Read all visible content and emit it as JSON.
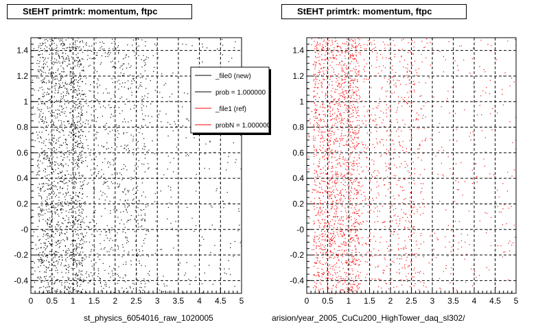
{
  "charts_window": {
    "background": "#ffffff"
  },
  "chart_data": [
    {
      "type": "scatter",
      "title": "StEHT primtrk: momentum, ftpc",
      "caption": "st_physics_6054016_raw_1020005",
      "xlim": [
        0,
        5
      ],
      "ylim": [
        -0.5,
        1.5
      ],
      "x_ticks": [
        "0",
        "0.5",
        "1",
        "1.5",
        "2",
        "2.5",
        "3",
        "3.5",
        "4",
        "4.5",
        "5"
      ],
      "y_ticks": [
        "-0.4",
        "-0.2",
        "-0",
        "0.2",
        "0.4",
        "0.6",
        "0.8",
        "1",
        "1.2",
        "1.4"
      ],
      "grid": true,
      "marker_color": "#000000",
      "density": "dense near x = 0.2–1.2, thinning toward x = 5, roughly uniform in y",
      "legend": {
        "placement": "top-right",
        "entries": [
          {
            "label": "_file0 (new)",
            "color": "#000000"
          },
          {
            "label": "prob = 1.000000",
            "color": "#000000"
          },
          {
            "label": "_file1 (ref)",
            "color": "#ff0000"
          },
          {
            "label": "probN = 1.000000",
            "color": "#ff0000"
          }
        ]
      }
    },
    {
      "type": "scatter",
      "title": "StEHT primtrk: momentum, ftpc",
      "caption": "arision/year_2005_CuCu200_HighTower_daq_sl302/",
      "xlim": [
        0,
        5
      ],
      "ylim": [
        -0.5,
        1.5
      ],
      "x_ticks": [
        "0",
        "0.5",
        "1",
        "1.5",
        "2",
        "2.5",
        "3",
        "3.5",
        "4",
        "4.5",
        "5"
      ],
      "y_ticks": [
        "-0.4",
        "-0.2",
        "-0",
        "0.2",
        "0.4",
        "0.6",
        "0.8",
        "1",
        "1.2",
        "1.4"
      ],
      "grid": true,
      "marker_color": "#ff0000",
      "density": "dense near x = 0.2–1.2, thinning toward x = 5, roughly uniform in y"
    }
  ]
}
